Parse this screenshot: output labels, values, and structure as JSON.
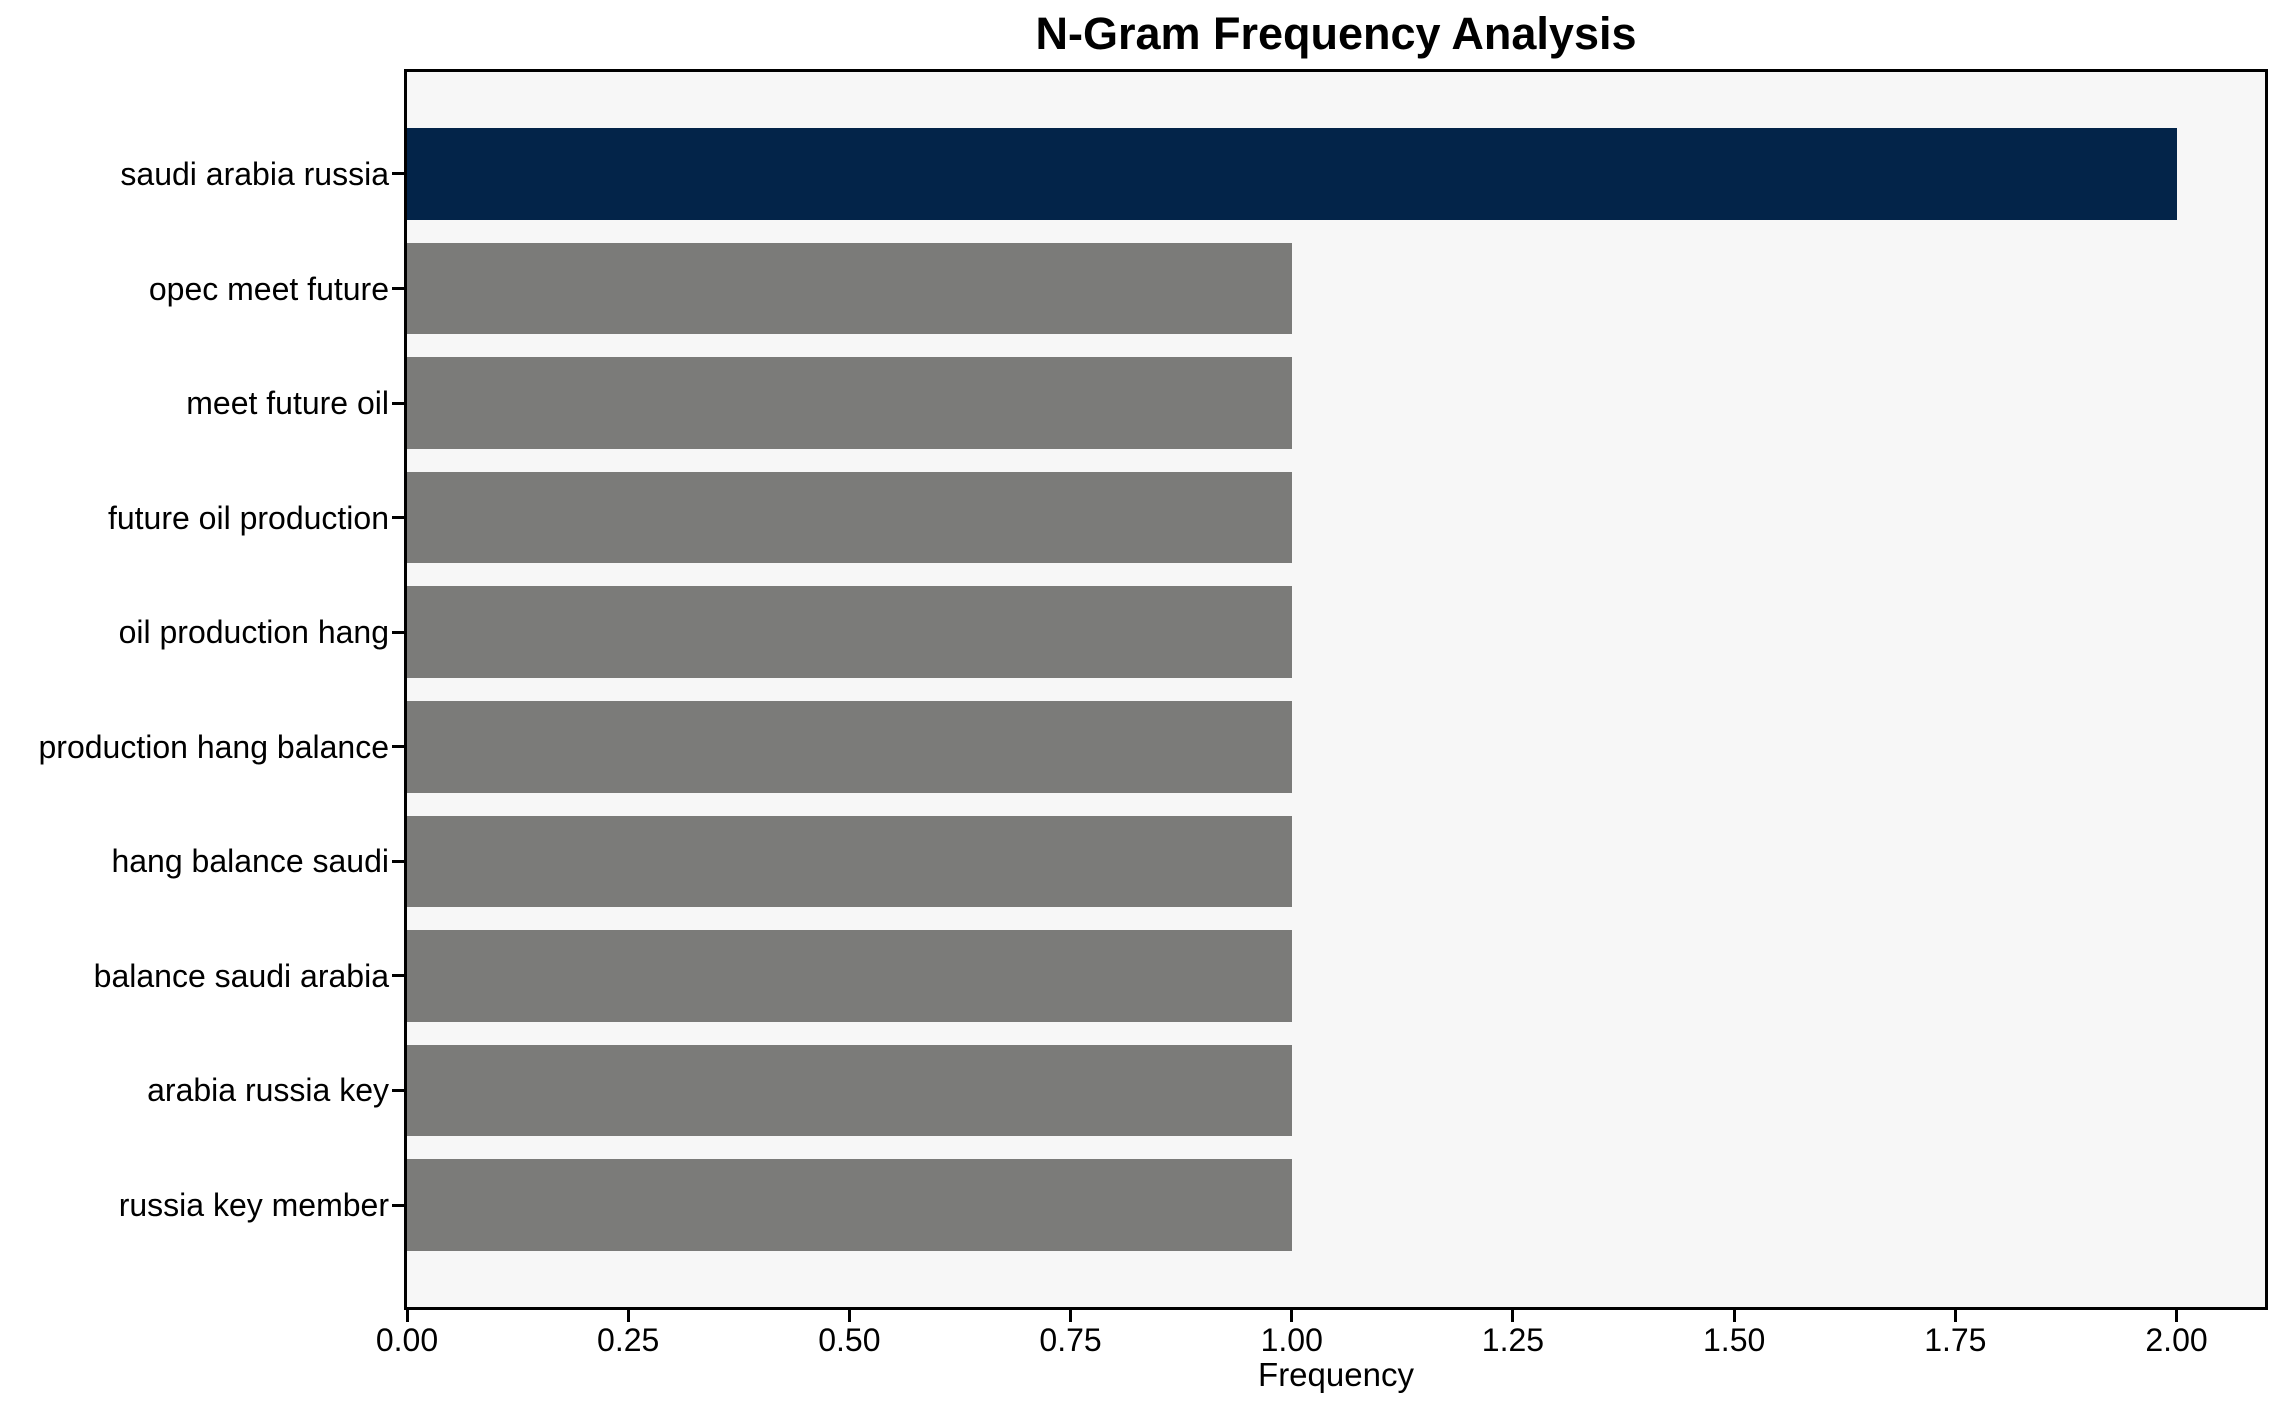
{
  "chart_data": {
    "type": "bar",
    "orientation": "horizontal",
    "title": "N-Gram Frequency Analysis",
    "xlabel": "Frequency",
    "ylabel": "",
    "categories": [
      "saudi arabia russia",
      "opec meet future",
      "meet future oil",
      "future oil production",
      "oil production hang",
      "production hang balance",
      "hang balance saudi",
      "balance saudi arabia",
      "arabia russia key",
      "russia key member"
    ],
    "values": [
      2.0,
      1.0,
      1.0,
      1.0,
      1.0,
      1.0,
      1.0,
      1.0,
      1.0,
      1.0
    ],
    "highlight_index": 0,
    "xlim": [
      0,
      2.1
    ],
    "xticks": [
      "0.00",
      "0.25",
      "0.50",
      "0.75",
      "1.00",
      "1.25",
      "1.50",
      "1.75",
      "2.00"
    ],
    "xtick_values": [
      0,
      0.25,
      0.5,
      0.75,
      1.0,
      1.25,
      1.5,
      1.75,
      2.0
    ],
    "grid": false,
    "legend": null,
    "colors": {
      "highlight_bar": "#032449",
      "default_bar": "#7b7b79",
      "plot_background": "#f7f7f7",
      "figure_background": "#ffffff",
      "spine": "#000000",
      "text": "#000000"
    }
  }
}
